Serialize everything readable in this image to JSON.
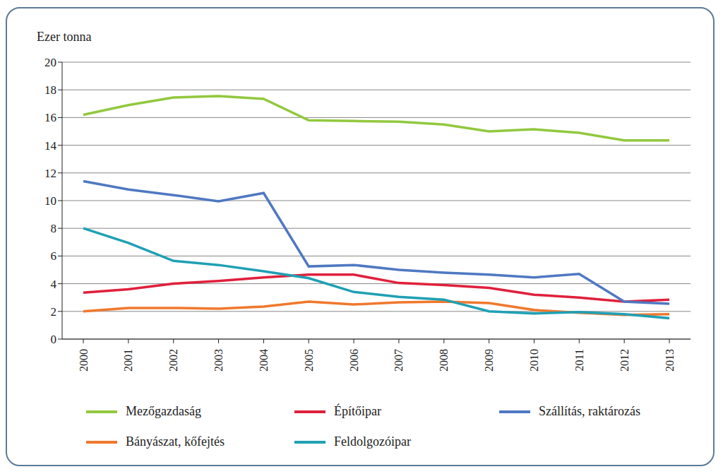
{
  "chart_data": {
    "type": "line",
    "y_label": "Ezer tonna",
    "categories": [
      "2000",
      "2001",
      "2002",
      "2003",
      "2004",
      "2005",
      "2006",
      "2007",
      "2008",
      "2009",
      "2010",
      "2011",
      "2012",
      "2013"
    ],
    "series": [
      {
        "name": "Mezőgazdaság",
        "color": "#92c83e",
        "values": [
          16.2,
          16.9,
          17.45,
          17.55,
          17.35,
          15.8,
          15.75,
          15.7,
          15.5,
          15.0,
          15.15,
          14.9,
          14.35,
          14.35
        ]
      },
      {
        "name": "Építőipar",
        "color": "#e0203c",
        "values": [
          3.35,
          3.6,
          4.0,
          4.2,
          4.45,
          4.65,
          4.65,
          4.05,
          3.9,
          3.7,
          3.2,
          3.0,
          2.7,
          2.85
        ]
      },
      {
        "name": "Szállítás, raktározás",
        "color": "#4f78c2",
        "values": [
          11.4,
          10.8,
          10.4,
          9.95,
          10.55,
          5.25,
          5.35,
          5.0,
          4.8,
          4.65,
          4.45,
          4.7,
          2.7,
          2.55
        ]
      },
      {
        "name": "Bányászat, kőfejtés",
        "color": "#f0782d",
        "values": [
          2.0,
          2.25,
          2.25,
          2.2,
          2.35,
          2.7,
          2.5,
          2.65,
          2.7,
          2.6,
          2.1,
          1.9,
          1.75,
          1.8
        ]
      },
      {
        "name": "Feldolgozóipar",
        "color": "#1fa0b4",
        "values": [
          8.0,
          6.95,
          5.65,
          5.35,
          4.9,
          4.4,
          3.4,
          3.05,
          2.85,
          2.0,
          1.85,
          1.95,
          1.8,
          1.5
        ]
      }
    ],
    "ylim": [
      0,
      20
    ],
    "yticks": [
      0,
      2,
      4,
      6,
      8,
      10,
      12,
      14,
      16,
      18,
      20
    ],
    "grid": true,
    "legend": "bottom"
  }
}
